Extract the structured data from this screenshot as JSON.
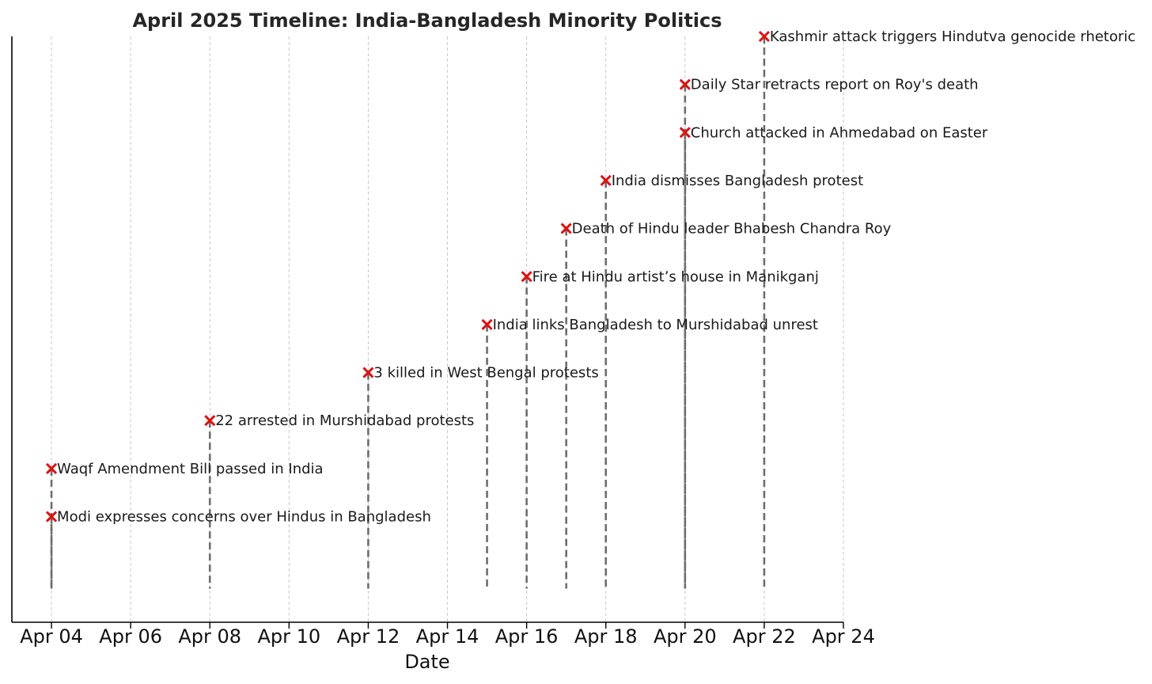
{
  "chart_data": {
    "type": "scatter",
    "title": "April 2025 Timeline: India-Bangladesh Minority Politics",
    "xlabel": "Date",
    "ylabel": "",
    "x_ticks": [
      "Apr 04",
      "Apr 06",
      "Apr 08",
      "Apr 10",
      "Apr 12",
      "Apr 14",
      "Apr 16",
      "Apr 18",
      "Apr 20",
      "Apr 22",
      "Apr 24"
    ],
    "xlim": [
      "2025-04-03",
      "2025-04-24"
    ],
    "ylim": [
      -1.2,
      11
    ],
    "grid": "vertical dashed",
    "marker": "x",
    "marker_color": "#e01010",
    "stem_color": "#6e6e6e",
    "events": [
      {
        "date": "2025-04-04",
        "y": 1,
        "label": "Modi expresses concerns over Hindus in Bangladesh"
      },
      {
        "date": "2025-04-04",
        "y": 2,
        "label": "Waqf Amendment Bill passed in India"
      },
      {
        "date": "2025-04-08",
        "y": 3,
        "label": "22 arrested in Murshidabad protests"
      },
      {
        "date": "2025-04-12",
        "y": 4,
        "label": "3 killed in West Bengal protests"
      },
      {
        "date": "2025-04-15",
        "y": 5,
        "label": "India links Bangladesh to Murshidabad unrest"
      },
      {
        "date": "2025-04-16",
        "y": 6,
        "label": "Fire at Hindu artist’s house in Manikganj"
      },
      {
        "date": "2025-04-17",
        "y": 7,
        "label": "Death of Hindu leader Bhabesh Chandra Roy"
      },
      {
        "date": "2025-04-18",
        "y": 8,
        "label": "India dismisses Bangladesh protest"
      },
      {
        "date": "2025-04-20",
        "y": 9,
        "label": "Church attacked in Ahmedabad on Easter"
      },
      {
        "date": "2025-04-20",
        "y": 10,
        "label": "Daily Star retracts report on Roy's death"
      },
      {
        "date": "2025-04-22",
        "y": 11,
        "label": "Kashmir attack triggers Hindutva genocide rhetoric"
      }
    ]
  }
}
